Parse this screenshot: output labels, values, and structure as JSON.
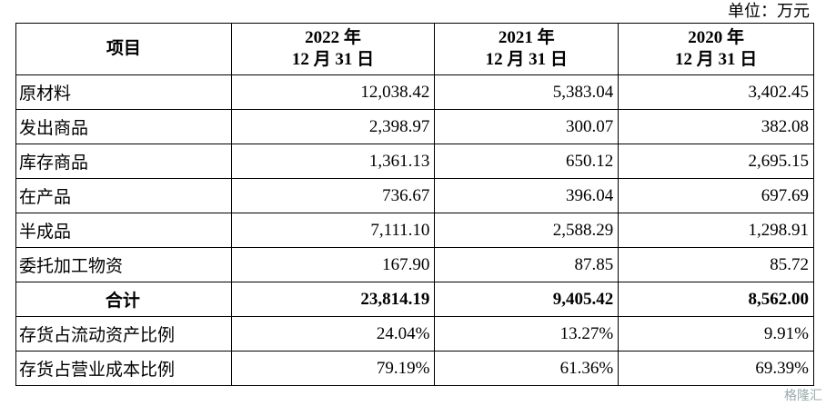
{
  "unit": "单位：万元",
  "table": {
    "header": [
      "项目",
      [
        "2022 年",
        "12 月 31 日"
      ],
      [
        "2021 年",
        "12 月 31 日"
      ],
      [
        "2020 年",
        "12 月 31 日"
      ]
    ],
    "rows": [
      [
        "原材料",
        "12,038.42",
        "5,383.04",
        "3,402.45"
      ],
      [
        "发出商品",
        "2,398.97",
        "300.07",
        "382.08"
      ],
      [
        "库存商品",
        "1,361.13",
        "650.12",
        "2,695.15"
      ],
      [
        "在产品",
        "736.67",
        "396.04",
        "697.69"
      ],
      [
        "半成品",
        "7,111.10",
        "2,588.29",
        "1,298.91"
      ],
      [
        "委托加工物资",
        "167.90",
        "87.85",
        "85.72"
      ],
      [
        "合计",
        "23,814.19",
        "9,405.42",
        "8,562.00"
      ],
      [
        "存货占流动资产比例",
        "24.04%",
        "13.27%",
        "9.91%"
      ],
      [
        "存货占营业成本比例",
        "79.19%",
        "61.36%",
        "69.39%"
      ]
    ]
  },
  "watermark": "格隆汇"
}
